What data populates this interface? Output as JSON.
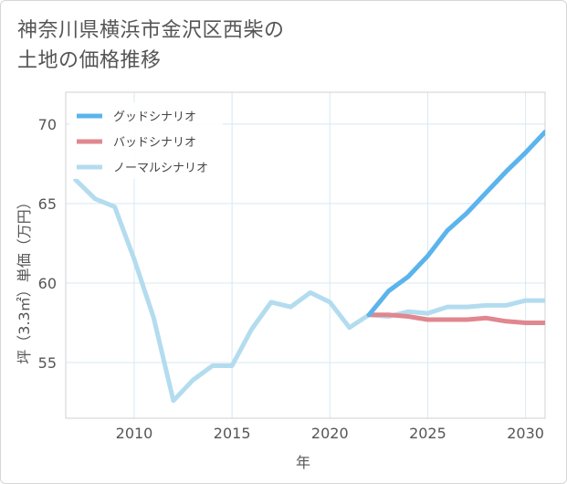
{
  "title_lines": [
    "神奈川県横浜市金沢区西柴の",
    "土地の価格推移"
  ],
  "chart_data": {
    "type": "line",
    "title": "神奈川県横浜市金沢区西柴の土地の価格推移",
    "xlabel": "年",
    "ylabel": "坪（3.3㎡）単価（万円）",
    "xlim": [
      2006.5,
      2031
    ],
    "ylim": [
      51.5,
      72
    ],
    "xticks": [
      2010,
      2015,
      2020,
      2025,
      2030
    ],
    "yticks": [
      55,
      60,
      65,
      70
    ],
    "grid": true,
    "legend_position": "top-left",
    "series": [
      {
        "name": "グッドシナリオ",
        "color": "#5bb4ec",
        "x": [
          2022,
          2023,
          2024,
          2025,
          2026,
          2027,
          2028,
          2029,
          2030,
          2031
        ],
        "y": [
          58.0,
          59.5,
          60.4,
          61.7,
          63.3,
          64.4,
          65.7,
          67.0,
          68.2,
          69.5
        ]
      },
      {
        "name": "バッドシナリオ",
        "color": "#e0878f",
        "x": [
          2022,
          2023,
          2024,
          2025,
          2026,
          2027,
          2028,
          2029,
          2030,
          2031
        ],
        "y": [
          58.0,
          58.0,
          57.9,
          57.7,
          57.7,
          57.7,
          57.8,
          57.6,
          57.5,
          57.5
        ]
      },
      {
        "name": "ノーマルシナリオ",
        "color": "#b3dcef",
        "x": [
          2007,
          2008,
          2009,
          2010,
          2011,
          2012,
          2013,
          2014,
          2015,
          2016,
          2017,
          2018,
          2019,
          2020,
          2021,
          2022,
          2023,
          2024,
          2025,
          2026,
          2027,
          2028,
          2029,
          2030,
          2031
        ],
        "y": [
          66.5,
          65.3,
          64.8,
          61.5,
          57.8,
          52.6,
          53.9,
          54.8,
          54.8,
          57.1,
          58.8,
          58.5,
          59.4,
          58.8,
          57.2,
          58.0,
          57.9,
          58.2,
          58.1,
          58.5,
          58.5,
          58.6,
          58.6,
          58.9,
          58.9
        ]
      }
    ]
  }
}
